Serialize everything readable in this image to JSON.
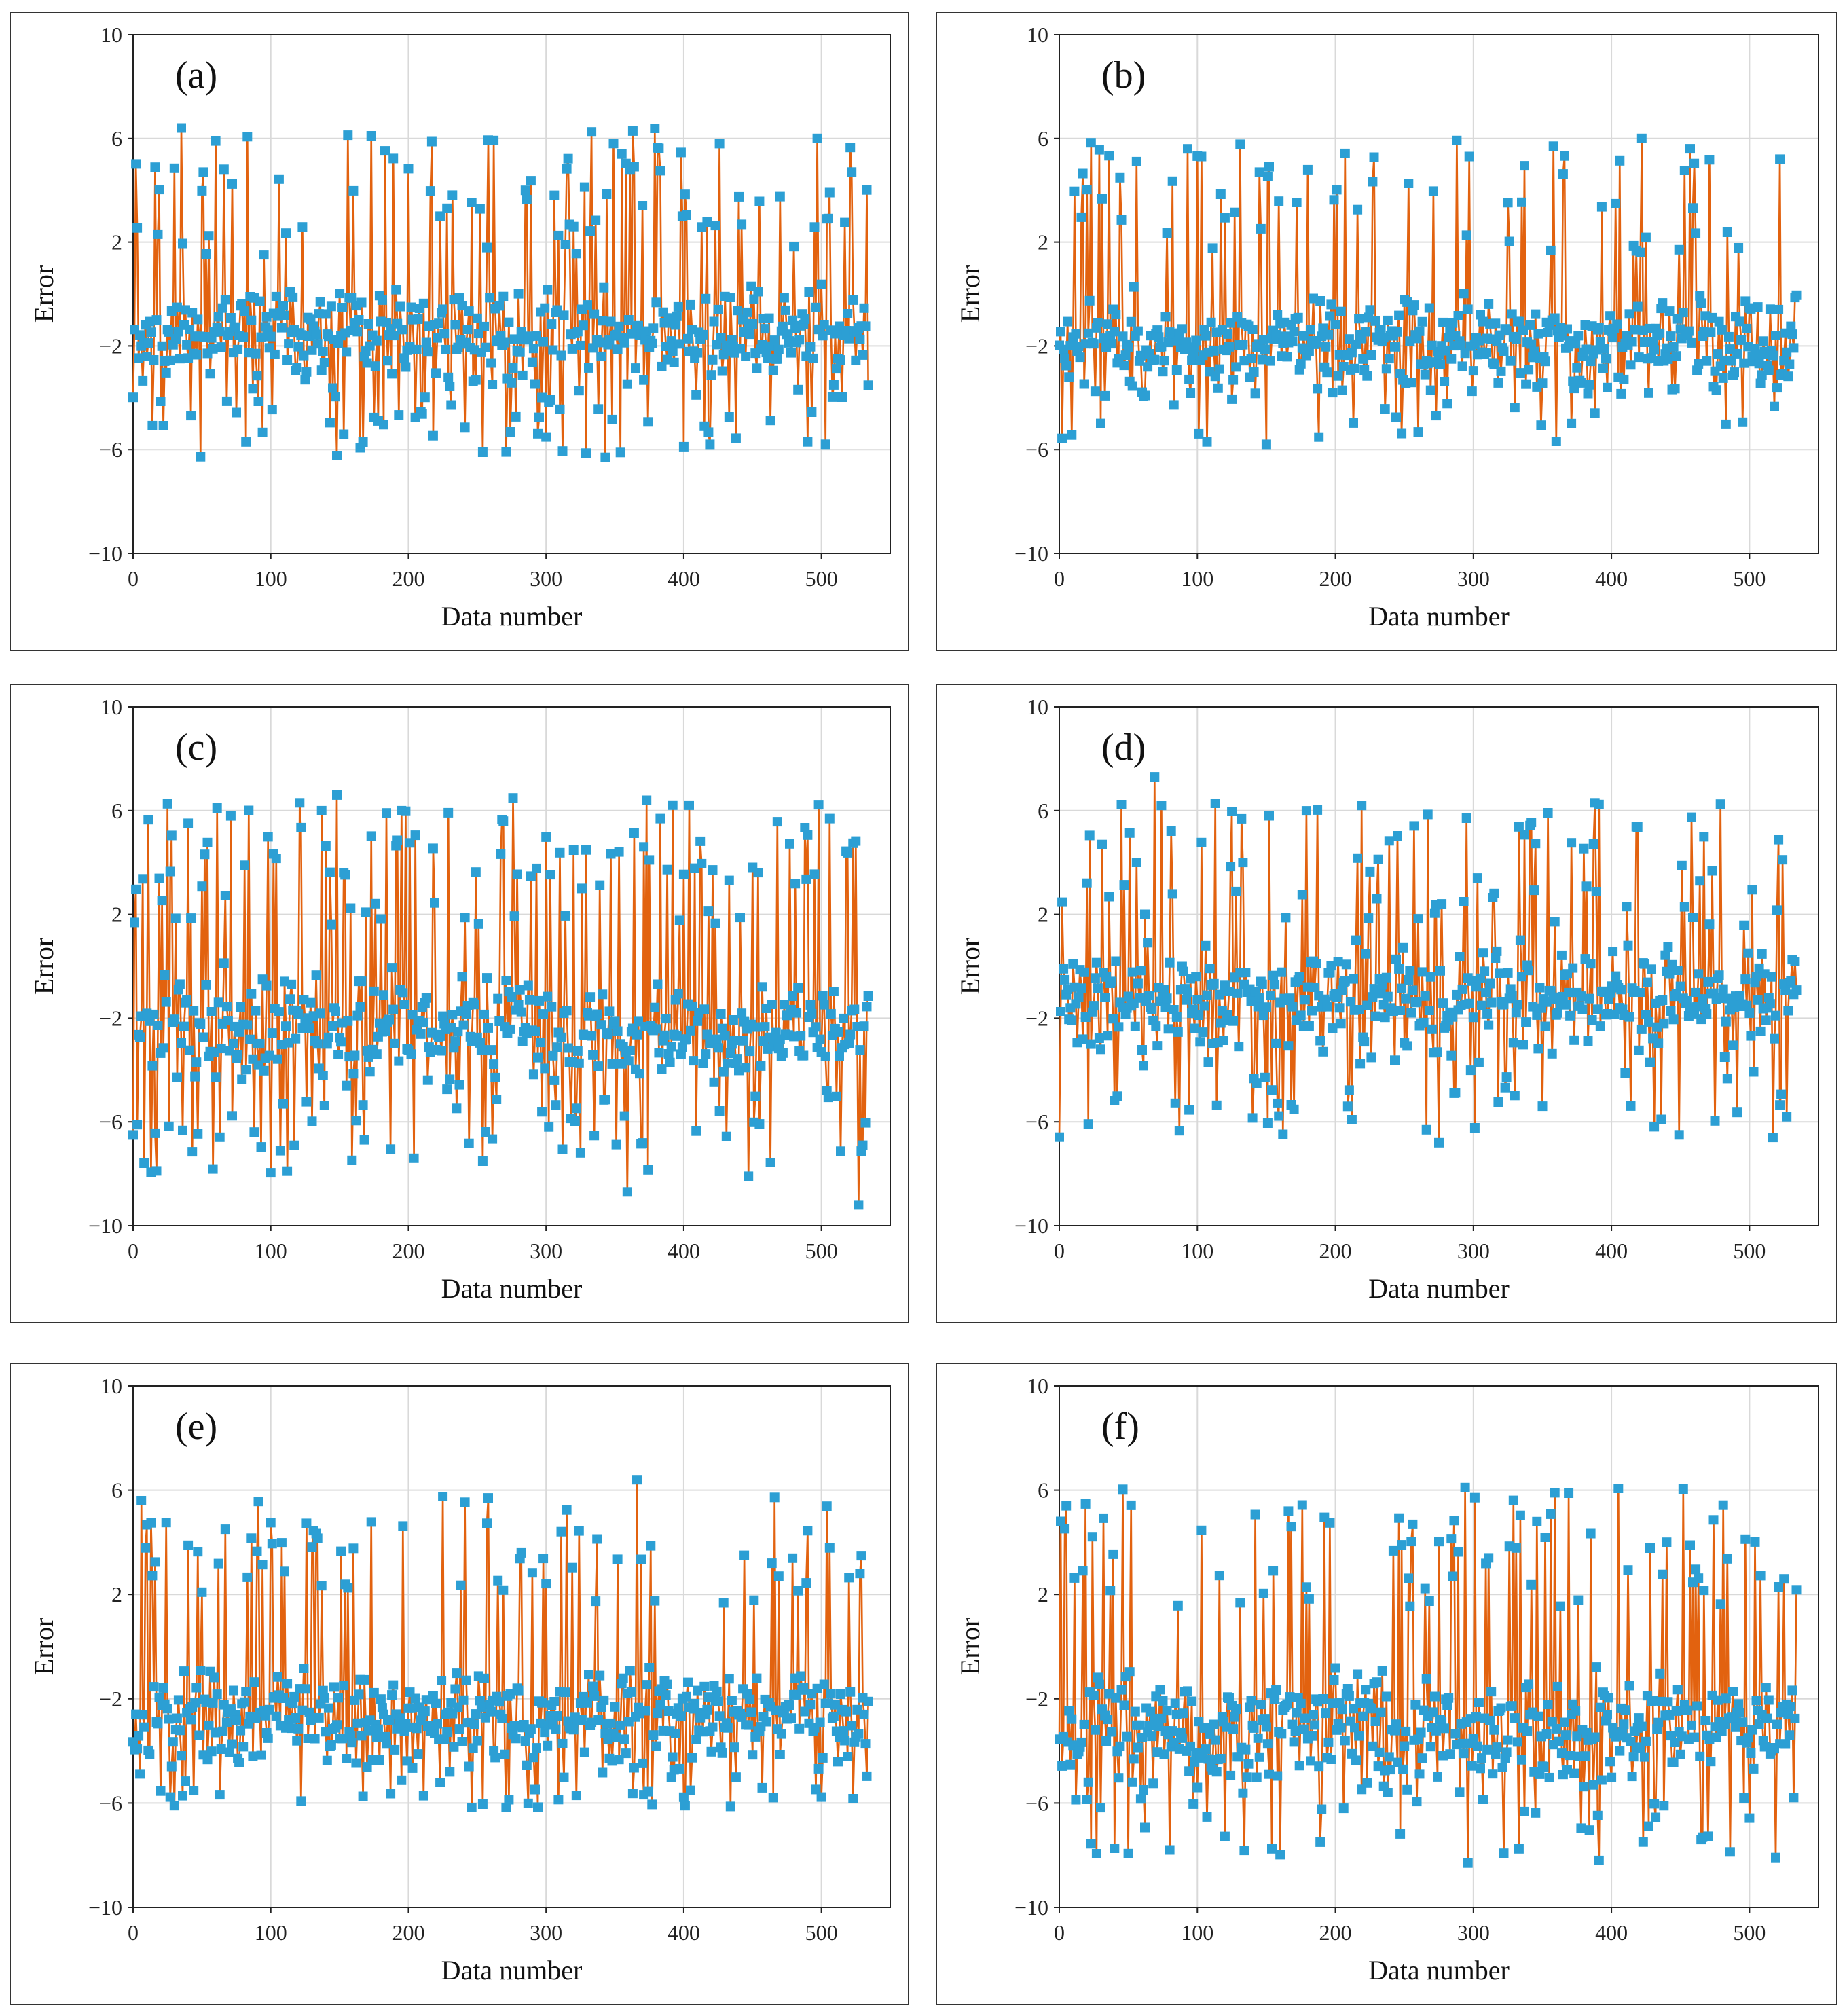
{
  "chart_data": [
    {
      "type": "line",
      "panel_label": "(a)",
      "xlabel": "Data number",
      "ylabel": "Error",
      "xlim": [
        0,
        550
      ],
      "ylim": [
        -10,
        10
      ],
      "xticks": [
        "0",
        "100",
        "200",
        "300",
        "400",
        "500"
      ],
      "yticks": [
        "10",
        "6",
        "2",
        "−2",
        "−6",
        "−10"
      ],
      "n_points": 535,
      "seed": 11,
      "baseline": -1.6,
      "spread": 1.3,
      "spike_rate": 0.16,
      "spike_min": 1.5,
      "spike_max": 6.4,
      "dip_min": -6.3,
      "highlights": [
        [
          35,
          6.4
        ],
        [
          60,
          5.9
        ],
        [
          173,
          6.1
        ],
        [
          254,
          -6.1
        ],
        [
          343,
          -6.3
        ],
        [
          355,
          5.4
        ],
        [
          426,
          5.8
        ],
        [
          497,
          6.0
        ],
        [
          490,
          -5.7
        ]
      ],
      "series": [
        {
          "name": "Error",
          "line_color": "#e2620f",
          "marker_color": "#2c9fd4"
        }
      ]
    },
    {
      "type": "line",
      "panel_label": "(b)",
      "xlabel": "Data number",
      "ylabel": "Error",
      "xlim": [
        0,
        550
      ],
      "ylim": [
        -10,
        10
      ],
      "xticks": [
        "0",
        "100",
        "200",
        "300",
        "400",
        "500"
      ],
      "yticks": [
        "10",
        "6",
        "2",
        "−2",
        "−6",
        "−10"
      ],
      "n_points": 535,
      "seed": 23,
      "baseline": -1.9,
      "spread": 1.2,
      "spike_rate": 0.12,
      "spike_min": 1.5,
      "spike_max": 6.0,
      "dip_min": -5.8,
      "highlights": [
        [
          103,
          5.3
        ],
        [
          107,
          -5.7
        ],
        [
          297,
          5.3
        ],
        [
          358,
          5.7
        ],
        [
          422,
          6.0
        ],
        [
          457,
          5.6
        ],
        [
          522,
          5.2
        ]
      ],
      "series": [
        {
          "name": "Error",
          "line_color": "#e2620f",
          "marker_color": "#2c9fd4"
        }
      ]
    },
    {
      "type": "line",
      "panel_label": "(c)",
      "xlabel": "Data number",
      "ylabel": "Error",
      "xlim": [
        0,
        550
      ],
      "ylim": [
        -10,
        10
      ],
      "xticks": [
        "0",
        "100",
        "200",
        "300",
        "400",
        "500"
      ],
      "yticks": [
        "10",
        "6",
        "2",
        "−2",
        "−6",
        "−10"
      ],
      "n_points": 535,
      "seed": 37,
      "baseline": -2.4,
      "spread": 1.4,
      "spike_rate": 0.18,
      "spike_min": 1.5,
      "spike_max": 6.6,
      "dip_min": -8.0,
      "highlights": [
        [
          148,
          6.6
        ],
        [
          359,
          -8.7
        ],
        [
          527,
          -9.2
        ],
        [
          447,
          -8.1
        ],
        [
          61,
          6.1
        ],
        [
          121,
          6.3
        ],
        [
          373,
          6.4
        ]
      ],
      "series": [
        {
          "name": "Error",
          "line_color": "#e2620f",
          "marker_color": "#2c9fd4"
        }
      ]
    },
    {
      "type": "line",
      "panel_label": "(d)",
      "xlabel": "Data number",
      "ylabel": "Error",
      "xlim": [
        0,
        550
      ],
      "ylim": [
        -10,
        10
      ],
      "xticks": [
        "0",
        "100",
        "200",
        "300",
        "400",
        "500"
      ],
      "yticks": [
        "10",
        "6",
        "2",
        "−2",
        "−6",
        "−10"
      ],
      "n_points": 535,
      "seed": 41,
      "baseline": -1.2,
      "spread": 1.3,
      "spike_rate": 0.14,
      "spike_min": 1.5,
      "spike_max": 6.3,
      "dip_min": -6.6,
      "highlights": [
        [
          69,
          7.3
        ],
        [
          74,
          6.2
        ],
        [
          219,
          6.2
        ],
        [
          388,
          6.3
        ],
        [
          275,
          -6.8
        ],
        [
          517,
          -6.6
        ]
      ],
      "series": [
        {
          "name": "Error",
          "line_color": "#e2620f",
          "marker_color": "#2c9fd4"
        }
      ]
    },
    {
      "type": "line",
      "panel_label": "(e)",
      "xlabel": "Data number",
      "ylabel": "Error",
      "xlim": [
        0,
        550
      ],
      "ylim": [
        -10,
        10
      ],
      "xticks": [
        "0",
        "100",
        "200",
        "300",
        "400",
        "500"
      ],
      "yticks": [
        "10",
        "6",
        "2",
        "−2",
        "−6",
        "−10"
      ],
      "n_points": 535,
      "seed": 53,
      "baseline": -2.6,
      "spread": 1.2,
      "spike_rate": 0.14,
      "spike_min": 1.5,
      "spike_max": 5.8,
      "dip_min": -6.2,
      "highlights": [
        [
          366,
          6.4
        ],
        [
          6,
          5.6
        ],
        [
          258,
          5.7
        ],
        [
          30,
          -6.1
        ],
        [
          401,
          -6.1
        ]
      ],
      "series": [
        {
          "name": "Error",
          "line_color": "#e2620f",
          "marker_color": "#2c9fd4"
        }
      ]
    },
    {
      "type": "line",
      "panel_label": "(f)",
      "xlabel": "Data number",
      "ylabel": "Error",
      "xlim": [
        0,
        550
      ],
      "ylim": [
        -10,
        10
      ],
      "xticks": [
        "0",
        "100",
        "200",
        "300",
        "400",
        "500"
      ],
      "yticks": [
        "10",
        "6",
        "2",
        "−2",
        "−6",
        "−10"
      ],
      "n_points": 535,
      "seed": 67,
      "baseline": -3.0,
      "spread": 1.4,
      "spike_rate": 0.13,
      "spike_min": 1.5,
      "spike_max": 6.1,
      "dip_min": -8.1,
      "highlights": [
        [
          294,
          6.1
        ],
        [
          359,
          5.9
        ],
        [
          296,
          -8.3
        ],
        [
          391,
          -8.2
        ],
        [
          80,
          -7.8
        ],
        [
          5,
          5.4
        ]
      ],
      "series": [
        {
          "name": "Error",
          "line_color": "#e2620f",
          "marker_color": "#2c9fd4"
        }
      ]
    }
  ]
}
